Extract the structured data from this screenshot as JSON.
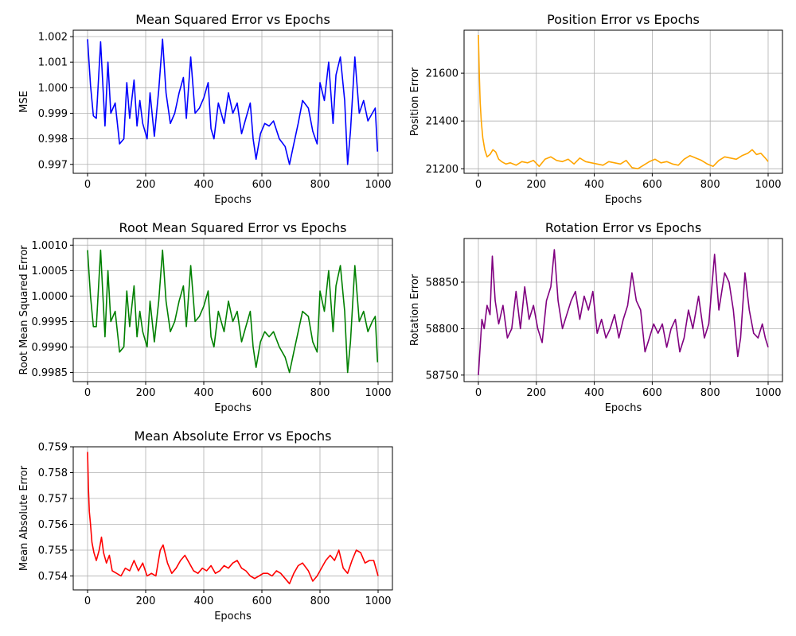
{
  "chart_data": [
    {
      "type": "line",
      "title": "Mean Squared Error vs Epochs",
      "xlabel": "Epochs",
      "ylabel": "MSE",
      "color": "#0000ff",
      "grid": true,
      "xlim": [
        0,
        1000
      ],
      "ylim": [
        0.99665,
        1.00225
      ],
      "xticks": [
        0,
        200,
        400,
        600,
        800,
        1000
      ],
      "yticks": [
        0.997,
        0.998,
        0.999,
        1.0,
        1.001,
        1.002
      ],
      "ytick_labels": [
        "0.997",
        "0.998",
        "0.999",
        "1.000",
        "1.001",
        "1.002"
      ],
      "series": [
        {
          "x": [
            0,
            10,
            20,
            30,
            45,
            60,
            70,
            80,
            95,
            110,
            125,
            135,
            145,
            160,
            170,
            180,
            190,
            205,
            215,
            230,
            245,
            258,
            270,
            285,
            300,
            315,
            330,
            340,
            355,
            370,
            385,
            400,
            415,
            425,
            435,
            450,
            470,
            485,
            500,
            515,
            530,
            545,
            560,
            570,
            580,
            595,
            610,
            625,
            640,
            660,
            680,
            695,
            710,
            725,
            740,
            760,
            775,
            790,
            800,
            815,
            830,
            845,
            855,
            870,
            885,
            895,
            905,
            920,
            935,
            950,
            965,
            980,
            990,
            998
          ],
          "y": [
            1.0019,
            1.0001,
            0.9989,
            0.9988,
            1.0018,
            0.9985,
            1.001,
            0.999,
            0.9994,
            0.9978,
            0.998,
            1.0002,
            0.9988,
            1.0003,
            0.9985,
            0.9995,
            0.9986,
            0.998,
            0.9998,
            0.9981,
            0.9999,
            1.0019,
            0.9998,
            0.9986,
            0.999,
            0.9998,
            1.0004,
            0.9988,
            1.0012,
            0.999,
            0.9992,
            0.9996,
            1.0002,
            0.9984,
            0.998,
            0.9994,
            0.9986,
            0.9998,
            0.999,
            0.9994,
            0.9982,
            0.9988,
            0.9994,
            0.998,
            0.9972,
            0.9982,
            0.9986,
            0.9985,
            0.9987,
            0.998,
            0.9977,
            0.997,
            0.9978,
            0.9986,
            0.9995,
            0.9992,
            0.9983,
            0.9978,
            1.0002,
            0.9995,
            1.001,
            0.9986,
            1.0005,
            1.0012,
            0.9995,
            0.997,
            0.9983,
            1.0012,
            0.999,
            0.9995,
            0.9987,
            0.999,
            0.9992,
            0.9975
          ]
        }
      ]
    },
    {
      "type": "line",
      "title": "Position Error vs Epochs",
      "xlabel": "Epochs",
      "ylabel": "Position Error",
      "color": "#ffa500",
      "grid": true,
      "xlim": [
        0,
        1000
      ],
      "ylim": [
        21181,
        21780
      ],
      "xticks": [
        0,
        200,
        400,
        600,
        800,
        1000
      ],
      "yticks": [
        21200,
        21400,
        21600
      ],
      "ytick_labels": [
        "21200",
        "21400",
        "21600"
      ],
      "series": [
        {
          "x": [
            0,
            3,
            6,
            10,
            15,
            22,
            30,
            40,
            50,
            60,
            70,
            80,
            95,
            110,
            130,
            150,
            170,
            190,
            210,
            230,
            250,
            270,
            290,
            310,
            330,
            350,
            370,
            390,
            410,
            430,
            450,
            470,
            490,
            510,
            530,
            550,
            570,
            590,
            610,
            630,
            650,
            670,
            690,
            710,
            730,
            750,
            770,
            790,
            810,
            830,
            850,
            870,
            890,
            910,
            930,
            945,
            960,
            975,
            990,
            1000
          ],
          "y": [
            21760,
            21600,
            21480,
            21400,
            21330,
            21280,
            21250,
            21260,
            21280,
            21270,
            21240,
            21230,
            21220,
            21225,
            21215,
            21230,
            21225,
            21235,
            21210,
            21240,
            21250,
            21235,
            21230,
            21240,
            21220,
            21245,
            21230,
            21225,
            21220,
            21215,
            21230,
            21225,
            21220,
            21235,
            21205,
            21200,
            21215,
            21230,
            21240,
            21225,
            21230,
            21220,
            21215,
            21240,
            21255,
            21245,
            21235,
            21220,
            21210,
            21235,
            21250,
            21245,
            21240,
            21255,
            21265,
            21280,
            21260,
            21265,
            21245,
            21230
          ]
        }
      ]
    },
    {
      "type": "line",
      "title": "Root Mean Squared Error vs Epochs",
      "xlabel": "Epochs",
      "ylabel": "Root Mean Squared Error",
      "color": "#008000",
      "grid": true,
      "xlim": [
        0,
        1000
      ],
      "ylim": [
        0.99832,
        1.00113
      ],
      "xticks": [
        0,
        200,
        400,
        600,
        800,
        1000
      ],
      "yticks": [
        0.9985,
        0.999,
        0.9995,
        1.0,
        1.0005,
        1.001
      ],
      "ytick_labels": [
        "0.9985",
        "0.9990",
        "0.9995",
        "1.0000",
        "1.0005",
        "1.0010"
      ],
      "series": [
        {
          "x": [
            0,
            10,
            20,
            30,
            45,
            60,
            70,
            80,
            95,
            110,
            125,
            135,
            145,
            160,
            170,
            180,
            190,
            205,
            215,
            230,
            245,
            258,
            270,
            285,
            300,
            315,
            330,
            340,
            355,
            370,
            385,
            400,
            415,
            425,
            435,
            450,
            470,
            485,
            500,
            515,
            530,
            545,
            560,
            570,
            580,
            595,
            610,
            625,
            640,
            660,
            680,
            695,
            710,
            725,
            740,
            760,
            775,
            790,
            800,
            815,
            830,
            845,
            855,
            870,
            885,
            895,
            905,
            920,
            935,
            950,
            965,
            980,
            990,
            998
          ],
          "y": [
            1.0009,
            1.0,
            0.9994,
            0.9994,
            1.0009,
            0.9992,
            1.0005,
            0.9995,
            0.9997,
            0.9989,
            0.999,
            1.0001,
            0.9994,
            1.0002,
            0.9992,
            0.9997,
            0.9993,
            0.999,
            0.9999,
            0.9991,
            0.9999,
            1.0009,
            0.9999,
            0.9993,
            0.9995,
            0.9999,
            1.0002,
            0.9994,
            1.0006,
            0.9995,
            0.9996,
            0.9998,
            1.0001,
            0.9992,
            0.999,
            0.9997,
            0.9993,
            0.9999,
            0.9995,
            0.9997,
            0.9991,
            0.9994,
            0.9997,
            0.999,
            0.9986,
            0.9991,
            0.9993,
            0.9992,
            0.9993,
            0.999,
            0.9988,
            0.9985,
            0.9989,
            0.9993,
            0.9997,
            0.9996,
            0.9991,
            0.9989,
            1.0001,
            0.9997,
            1.0005,
            0.9993,
            1.0002,
            1.0006,
            0.9997,
            0.9985,
            0.9991,
            1.0006,
            0.9995,
            0.9997,
            0.9993,
            0.9995,
            0.9996,
            0.9987
          ]
        }
      ]
    },
    {
      "type": "line",
      "title": "Rotation Error vs Epochs",
      "xlabel": "Epochs",
      "ylabel": "Rotation Error",
      "color": "#800080",
      "grid": true,
      "xlim": [
        0,
        1000
      ],
      "ylim": [
        58743,
        58897
      ],
      "xticks": [
        0,
        200,
        400,
        600,
        800,
        1000
      ],
      "yticks": [
        58750,
        58800,
        58850
      ],
      "ytick_labels": [
        "58750",
        "58800",
        "58850"
      ],
      "series": [
        {
          "x": [
            0,
            5,
            12,
            20,
            30,
            40,
            48,
            58,
            70,
            85,
            100,
            115,
            130,
            145,
            160,
            175,
            190,
            205,
            220,
            235,
            250,
            262,
            275,
            290,
            305,
            320,
            335,
            350,
            365,
            380,
            395,
            410,
            425,
            440,
            455,
            470,
            485,
            500,
            515,
            530,
            545,
            560,
            575,
            590,
            605,
            620,
            635,
            650,
            665,
            680,
            695,
            710,
            725,
            740,
            760,
            780,
            795,
            815,
            830,
            850,
            865,
            880,
            895,
            905,
            920,
            935,
            950,
            965,
            980,
            990,
            1000
          ],
          "y": [
            58750,
            58775,
            58810,
            58800,
            58825,
            58815,
            58878,
            58830,
            58805,
            58825,
            58790,
            58800,
            58840,
            58800,
            58845,
            58810,
            58825,
            58800,
            58785,
            58830,
            58845,
            58885,
            58830,
            58800,
            58815,
            58830,
            58840,
            58810,
            58835,
            58820,
            58840,
            58795,
            58810,
            58790,
            58800,
            58815,
            58790,
            58810,
            58825,
            58860,
            58830,
            58820,
            58775,
            58790,
            58805,
            58795,
            58805,
            58780,
            58800,
            58810,
            58775,
            58790,
            58820,
            58800,
            58835,
            58790,
            58805,
            58880,
            58820,
            58860,
            58850,
            58820,
            58770,
            58790,
            58860,
            58820,
            58795,
            58790,
            58805,
            58790,
            58780
          ]
        }
      ]
    },
    {
      "type": "line",
      "title": "Mean Absolute Error vs Epochs",
      "xlabel": "Epochs",
      "ylabel": "Mean Absolute Error",
      "color": "#ff0000",
      "grid": true,
      "xlim": [
        0,
        1000
      ],
      "ylim": [
        0.75346,
        0.759
      ],
      "xticks": [
        0,
        200,
        400,
        600,
        800,
        1000
      ],
      "yticks": [
        0.754,
        0.755,
        0.756,
        0.757,
        0.758,
        0.759
      ],
      "ytick_labels": [
        "0.754",
        "0.755",
        "0.756",
        "0.757",
        "0.758",
        "0.759"
      ],
      "series": [
        {
          "x": [
            0,
            3,
            6,
            10,
            15,
            22,
            30,
            40,
            48,
            55,
            65,
            75,
            85,
            100,
            115,
            130,
            145,
            160,
            175,
            190,
            205,
            220,
            235,
            250,
            260,
            275,
            290,
            305,
            320,
            335,
            350,
            365,
            380,
            395,
            410,
            425,
            440,
            455,
            470,
            485,
            500,
            515,
            530,
            545,
            560,
            575,
            590,
            605,
            620,
            635,
            650,
            665,
            680,
            695,
            710,
            725,
            740,
            760,
            775,
            790,
            805,
            820,
            835,
            850,
            865,
            880,
            895,
            910,
            925,
            940,
            955,
            970,
            985,
            1000
          ],
          "y": [
            0.7588,
            0.7574,
            0.7565,
            0.756,
            0.7553,
            0.7549,
            0.7546,
            0.755,
            0.7555,
            0.7549,
            0.7545,
            0.7548,
            0.7542,
            0.7541,
            0.754,
            0.7543,
            0.7542,
            0.7546,
            0.7542,
            0.7545,
            0.754,
            0.7541,
            0.754,
            0.755,
            0.7552,
            0.7545,
            0.7541,
            0.7543,
            0.7546,
            0.7548,
            0.7545,
            0.7542,
            0.7541,
            0.7543,
            0.7542,
            0.7544,
            0.7541,
            0.7542,
            0.7544,
            0.7543,
            0.7545,
            0.7546,
            0.7543,
            0.7542,
            0.754,
            0.7539,
            0.754,
            0.7541,
            0.7541,
            0.754,
            0.7542,
            0.7541,
            0.7539,
            0.7537,
            0.7541,
            0.7544,
            0.7545,
            0.7542,
            0.7538,
            0.754,
            0.7543,
            0.7546,
            0.7548,
            0.7546,
            0.755,
            0.7543,
            0.7541,
            0.7546,
            0.755,
            0.7549,
            0.7545,
            0.7546,
            0.7546,
            0.754
          ]
        }
      ]
    }
  ]
}
